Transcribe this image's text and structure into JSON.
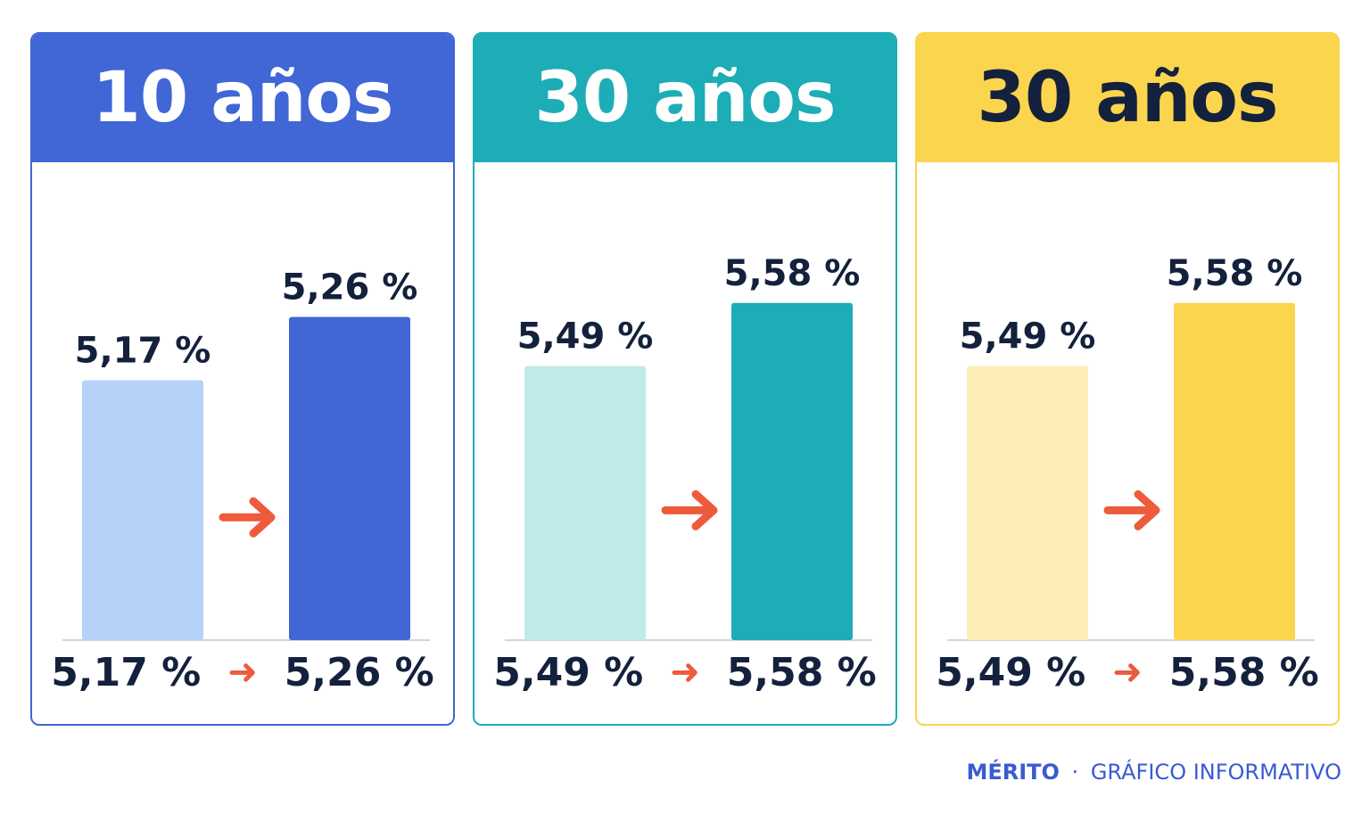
{
  "colors": {
    "arrow": "#ee5a3c",
    "text": "#14213d",
    "baseline": "#cfd6e0"
  },
  "chart_data": [
    {
      "type": "bar",
      "title": "10 años",
      "categories": [
        "",
        ""
      ],
      "values": [
        5.17,
        5.26
      ],
      "value_labels": [
        "5,17 %",
        "5,26 %"
      ],
      "summary": {
        "from": "5,17 %",
        "to": "5,26 %"
      },
      "ylim": [
        4.8,
        5.3
      ],
      "colors": {
        "header": "#4166d5",
        "header_text": "#ffffff",
        "border": "#4166d5",
        "bar_light": "#b6d2f9",
        "bar_dark": "#4166d5"
      }
    },
    {
      "type": "bar",
      "title": "30 años",
      "categories": [
        "",
        ""
      ],
      "values": [
        5.49,
        5.58
      ],
      "value_labels": [
        "5,49 %",
        "5,58 %"
      ],
      "summary": {
        "from": "5,49 %",
        "to": "5,58 %"
      },
      "ylim": [
        5.1,
        5.6
      ],
      "colors": {
        "header": "#1cadb6",
        "header_text": "#ffffff",
        "border": "#1cadb6",
        "bar_light": "#bfeae8",
        "bar_dark": "#1cadb6"
      }
    },
    {
      "type": "bar",
      "title": "30 años",
      "categories": [
        "",
        ""
      ],
      "values": [
        5.49,
        5.58
      ],
      "value_labels": [
        "5,49 %",
        "5,58 %"
      ],
      "summary": {
        "from": "5,49 %",
        "to": "5,58 %"
      },
      "ylim": [
        5.1,
        5.6
      ],
      "colors": {
        "header": "#fbd54e",
        "header_text": "#14213d",
        "border": "#fbd54e",
        "bar_light": "#fdedb6",
        "bar_dark": "#fbd54e"
      }
    }
  ],
  "footer": {
    "brand": "MÉRITO",
    "separator": "·",
    "label": "GRÁFICO INFORMATIVO"
  }
}
